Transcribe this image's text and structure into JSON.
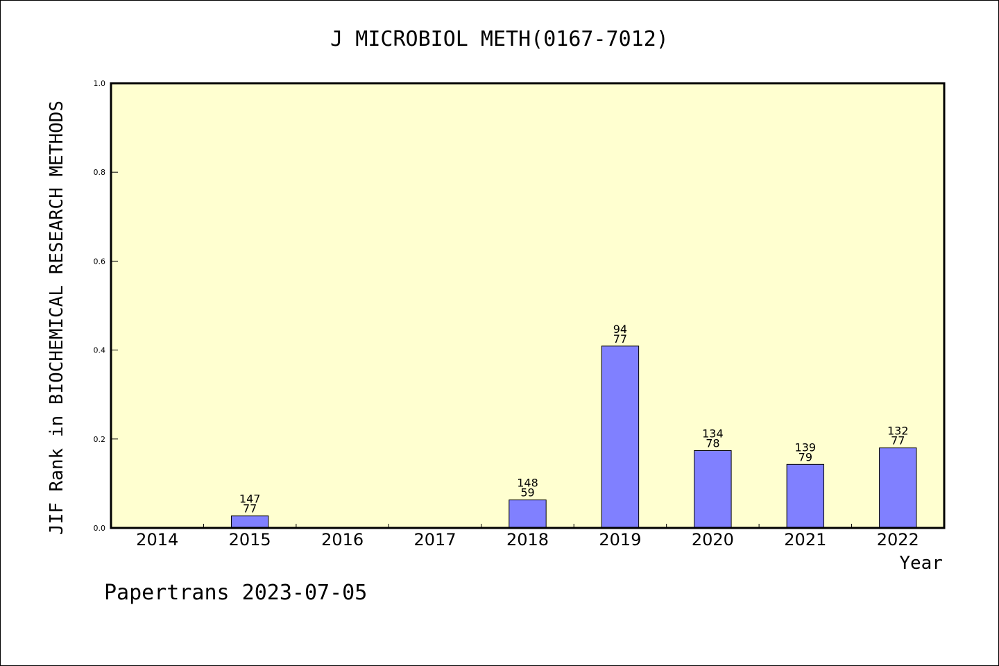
{
  "chart_data": {
    "type": "bar",
    "title": "J MICROBIOL METH(0167-7012)",
    "xlabel": "Year",
    "ylabel": "JIF Rank in BIOCHEMICAL RESEARCH METHODS",
    "ylim": [
      0,
      1.0
    ],
    "yticks": [
      "0.0",
      "0.2",
      "0.4",
      "0.6",
      "0.8",
      "1.0"
    ],
    "categories": [
      "2014",
      "2015",
      "2016",
      "2017",
      "2018",
      "2019",
      "2020",
      "2021",
      "2022"
    ],
    "values": [
      null,
      0.027,
      null,
      null,
      0.063,
      0.409,
      0.174,
      0.143,
      0.18
    ],
    "labels_top": [
      "",
      "147",
      "",
      "",
      "148",
      "94",
      "134",
      "139",
      "132"
    ],
    "labels_bottom": [
      "",
      "77",
      "",
      "",
      "59",
      "77",
      "78",
      "79",
      "77"
    ],
    "colors": {
      "plot_background": "#ffffd0",
      "bar_fill": "#8080ff",
      "bar_stroke": "#000000"
    }
  },
  "footer": "Papertrans 2023-07-05"
}
